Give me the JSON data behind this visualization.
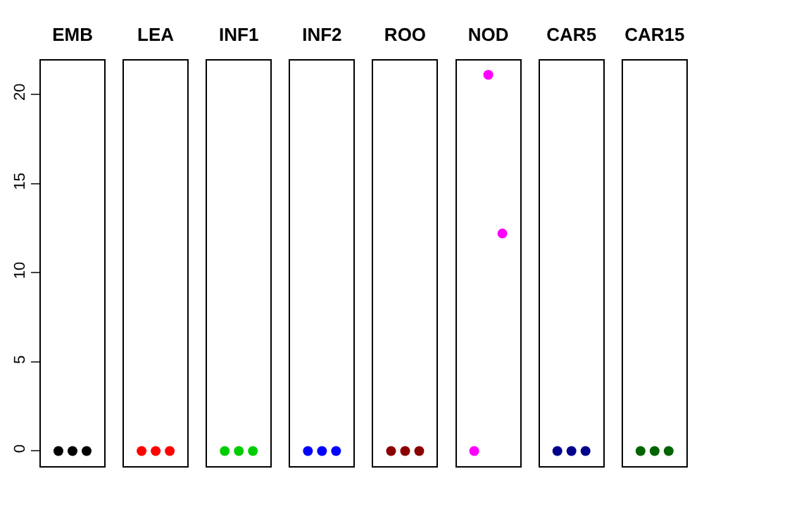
{
  "chart_data": {
    "type": "scatter",
    "categories": [
      "EMB",
      "LEA",
      "INF1",
      "INF2",
      "ROO",
      "NOD",
      "CAR5",
      "CAR15"
    ],
    "series": [
      {
        "colors": [
          "#000000",
          "#ff0000",
          "#00cd00",
          "#0000ff",
          "#8b0000",
          "#ff00ff",
          "#00008b",
          "#006400"
        ],
        "values": [
          0,
          0,
          0,
          0,
          0,
          0,
          0,
          0
        ]
      },
      {
        "colors": [
          "#000000",
          "#ff0000",
          "#00cd00",
          "#0000ff",
          "#8b0000",
          "#ff00ff",
          "#00008b",
          "#006400"
        ],
        "values": [
          0,
          0,
          0,
          0,
          0,
          21.1,
          0,
          0
        ]
      },
      {
        "colors": [
          "#000000",
          "#ff0000",
          "#00cd00",
          "#0000ff",
          "#8b0000",
          "#ff00ff",
          "#00008b",
          "#006400"
        ],
        "values": [
          0,
          0,
          0,
          0,
          0,
          12.2,
          0,
          0
        ]
      }
    ],
    "ylim": [
      -0.85,
      21.9
    ],
    "yticks": [
      0,
      5,
      10,
      15,
      20
    ],
    "marker": "circle"
  }
}
